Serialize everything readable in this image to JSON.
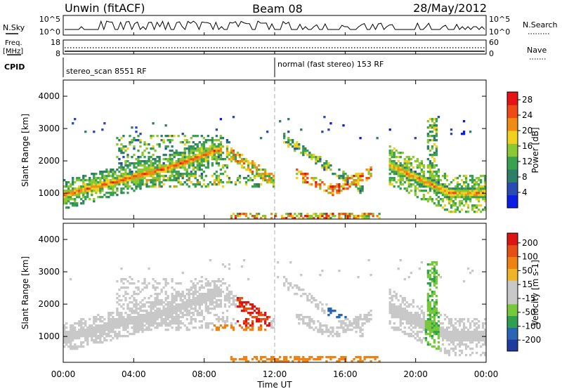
{
  "header": {
    "station": "Unwin (fitACF)",
    "beam": "Beam 08",
    "date": "28/May/2012"
  },
  "top_panels": {
    "nsky_label": "N.Sky",
    "nsky_ticks": [
      "10^5",
      "10^0"
    ],
    "nsearch_label": "N.Search",
    "nsearch_ticks": [
      "10^5",
      "10^0"
    ],
    "freq_label": "Freq.",
    "freq_unit": "[MHz]",
    "freq_ticks": [
      "18",
      "8"
    ],
    "nave_label": "Nave",
    "nave_ticks": [
      "60",
      "0"
    ],
    "cpid_label": "CPID",
    "cpid_modes": [
      "stereo_scan 8551 RF",
      "normal (fast stereo) 153 RF"
    ]
  },
  "colors": {
    "power_scale": [
      "#0a1ee6",
      "#2a4ab4",
      "#2e7f67",
      "#3aa24e",
      "#8cc832",
      "#f0d21e",
      "#f08c14",
      "#f04b14",
      "#e61414"
    ],
    "velocity_scale": [
      "#1e3ca0",
      "#2a64b4",
      "#2ea050",
      "#78c83c",
      "#c8c8c8",
      "#c8c8c8",
      "#f0b428",
      "#f08214",
      "#e65014",
      "#dc1414"
    ],
    "ground_scatter": "#c8c8c8"
  },
  "chart_data": [
    {
      "type": "heatmap",
      "title": "Power",
      "xlabel": "",
      "ylabel": "Slant Range [km]",
      "x_ticks": [
        "00:00",
        "04:00",
        "08:00",
        "12:00",
        "16:00",
        "20:00",
        "00:00"
      ],
      "y_ticks": [
        "1000",
        "2000",
        "3000",
        "4000"
      ],
      "xlim_hours": [
        0,
        24
      ],
      "ylim_km": [
        200,
        4500
      ],
      "colorbar_label": "Power [dB]",
      "colorbar_ticks": [
        "4",
        "8",
        "12",
        "16",
        "20",
        "24",
        "28"
      ],
      "colorbar_range": [
        0,
        30
      ]
    },
    {
      "type": "heatmap",
      "title": "Velocity",
      "xlabel": "Time UT",
      "ylabel": "Slant Range [km]",
      "x_ticks": [
        "00:00",
        "04:00",
        "08:00",
        "12:00",
        "16:00",
        "20:00",
        "00:00"
      ],
      "y_ticks": [
        "1000",
        "2000",
        "3000",
        "4000"
      ],
      "xlim_hours": [
        0,
        24
      ],
      "ylim_km": [
        200,
        4500
      ],
      "colorbar_label": "Velocity [m s-1]",
      "colorbar_ticks": [
        "200",
        "100",
        "50",
        "15",
        "-15",
        "-50",
        "-100",
        "-200"
      ],
      "colorbar_range": [
        -250,
        250
      ]
    }
  ]
}
